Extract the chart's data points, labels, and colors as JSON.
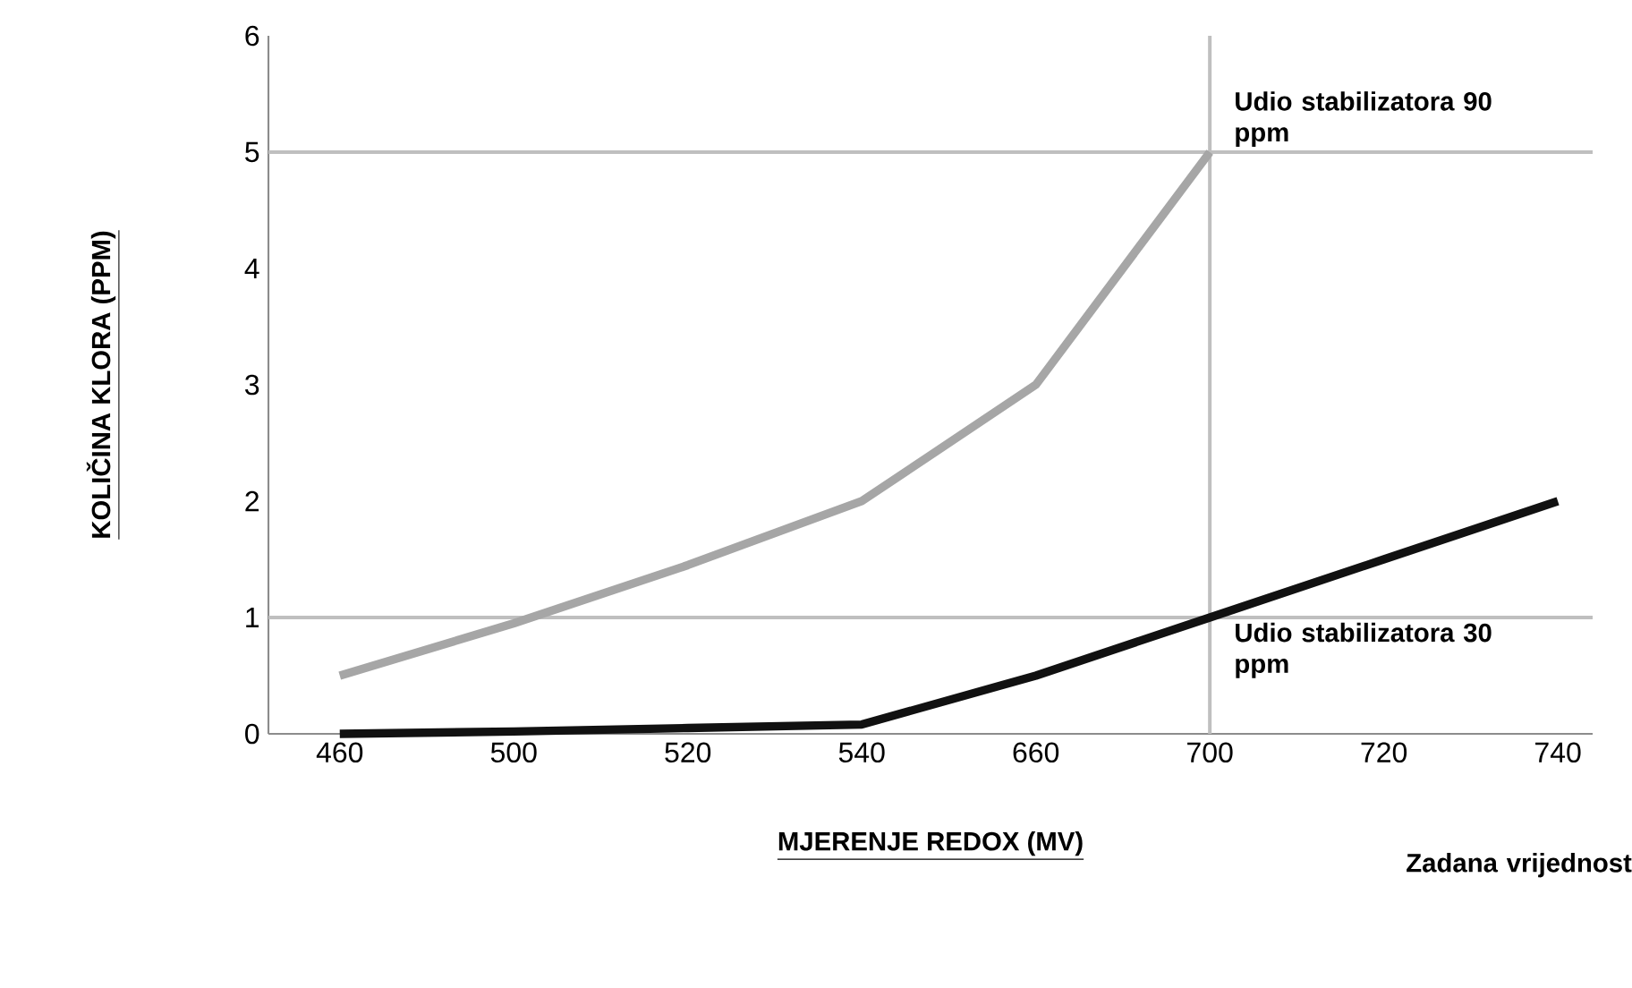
{
  "chart_data": {
    "type": "line",
    "xlabel": "MJERENJE REDOX (MV)",
    "ylabel": "KOLIČINA KLORA (PPM)",
    "categories": [
      "460",
      "500",
      "520",
      "540",
      "660",
      "700",
      "720",
      "740"
    ],
    "series": [
      {
        "color": "#a6a6a6",
        "values": [
          0.5,
          0.95,
          1.45,
          2,
          3,
          5,
          null,
          null
        ]
      },
      {
        "color": "#111111",
        "values": [
          0,
          0.02,
          0.05,
          0.08,
          0.5,
          1,
          1.5,
          2
        ]
      }
    ],
    "ylim": [
      0,
      6
    ],
    "yticks": [
      0,
      1,
      2,
      3,
      4,
      5,
      6
    ],
    "grid": false,
    "ref_lines": [
      {
        "axis": "y",
        "value": 5,
        "color": "#bfbfbf"
      },
      {
        "axis": "y",
        "value": 1,
        "color": "#bfbfbf"
      },
      {
        "axis": "x",
        "value": "700",
        "color": "#bfbfbf"
      }
    ],
    "annotations": [
      {
        "text": "Udio stabilizatora 90 ppm",
        "x": "700",
        "y": 5
      },
      {
        "text": "Udio stabilizatora 30 ppm",
        "x": "700",
        "y": 1
      },
      "Zadana vrijednost"
    ]
  }
}
